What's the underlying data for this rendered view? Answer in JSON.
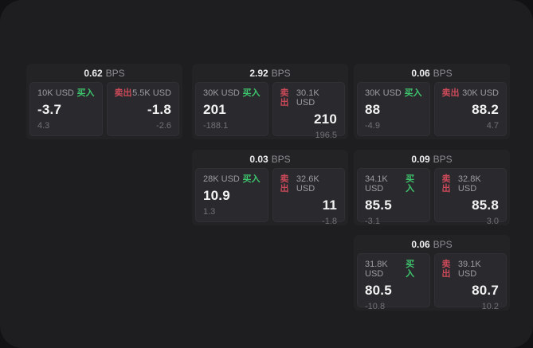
{
  "theme": {
    "backdrop": "#121214",
    "panel_bg": "#1e1e21",
    "card_bg": "#232326",
    "tile_bg": "#2a2a2e",
    "buy_color": "#3ec46d",
    "sell_color": "#cb4959"
  },
  "labels": {
    "bps": "BPS",
    "buy": "买入",
    "sell": "卖出"
  },
  "cards": [
    {
      "spread_bps": "0.62",
      "buy": {
        "size": "10K USD",
        "price": "-3.7",
        "delta": "4.3"
      },
      "sell": {
        "size": "5.5K USD",
        "price": "-1.8",
        "delta": "-2.6"
      }
    },
    {
      "spread_bps": "2.92",
      "buy": {
        "size": "30K USD",
        "price": "201",
        "delta": "-188.1"
      },
      "sell": {
        "size": "30.1K USD",
        "price": "210",
        "delta": "196.5"
      }
    },
    {
      "spread_bps": "0.06",
      "buy": {
        "size": "30K USD",
        "price": "88",
        "delta": "-4.9"
      },
      "sell": {
        "size": "30K USD",
        "price": "88.2",
        "delta": "4.7"
      }
    },
    {
      "spread_bps": "0.03",
      "buy": {
        "size": "28K USD",
        "price": "10.9",
        "delta": "1.3"
      },
      "sell": {
        "size": "32.6K USD",
        "price": "11",
        "delta": "-1.8"
      }
    },
    {
      "spread_bps": "0.09",
      "buy": {
        "size": "34.1K USD",
        "price": "85.5",
        "delta": "-3.1"
      },
      "sell": {
        "size": "32.8K USD",
        "price": "85.8",
        "delta": "3.0"
      }
    },
    {
      "spread_bps": "0.06",
      "buy": {
        "size": "31.8K USD",
        "price": "80.5",
        "delta": "-10.8"
      },
      "sell": {
        "size": "39.1K USD",
        "price": "80.7",
        "delta": "10.2"
      }
    }
  ]
}
